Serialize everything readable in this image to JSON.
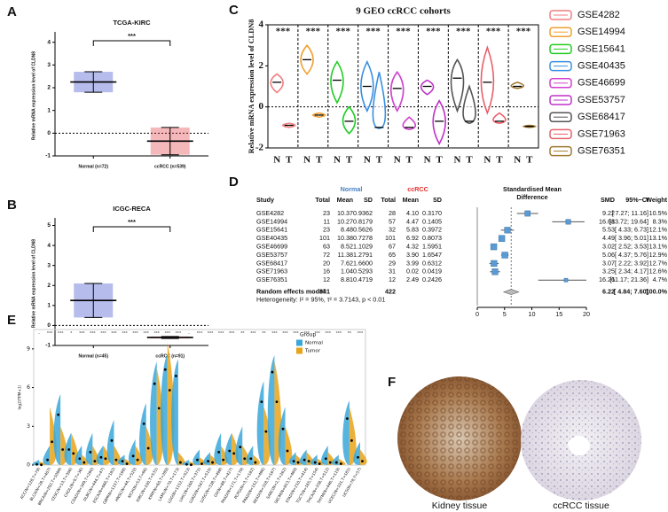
{
  "chart_data": [
    {
      "type": "dot",
      "panel": "A",
      "title": "TCGA-KIRC",
      "ylabel": "Relative mRNA expression level of CLDN8",
      "categories": [
        "Normal (n=72)",
        "ccRCC (n=539)"
      ],
      "colors": [
        "#2f3fc8",
        "#e0303a"
      ],
      "values": [
        2.25,
        -0.35
      ],
      "errors": [
        0.45,
        0.6
      ],
      "significance": "***",
      "ylim": [
        -1,
        4.3
      ],
      "yticks": [
        -1,
        0,
        1,
        2,
        3,
        4
      ]
    },
    {
      "type": "dot",
      "panel": "B",
      "title": "ICGC-RECA",
      "ylabel": "Relative mRNA expression level of CLDN8",
      "categories": [
        "Normal (n=45)",
        "ccRCC (n=91)"
      ],
      "colors": [
        "#2f3fc8",
        "#e0303a"
      ],
      "values": [
        1.25,
        -0.6
      ],
      "errors": [
        0.85,
        0.05
      ],
      "significance": "***",
      "ylim": [
        -1,
        5.2
      ],
      "yticks": [
        -1,
        0,
        1,
        2,
        3,
        4,
        5
      ]
    },
    {
      "type": "violin",
      "panel": "C",
      "title": "9 GEO ccRCC cohorts",
      "ylabel": "Relative mRNA expression level of CLDN8",
      "categories": [
        "N",
        "T"
      ],
      "significance": "***",
      "ylim": [
        -2,
        4
      ],
      "yticks": [
        -2,
        0,
        2,
        4
      ],
      "series": [
        {
          "name": "GSE4282",
          "color": "#f07f80",
          "values": [
            1.2,
            -0.9
          ],
          "low": [
            0.7,
            -1.0
          ],
          "high": [
            1.6,
            -0.8
          ]
        },
        {
          "name": "GSE14994",
          "color": "#f0a030",
          "values": [
            2.3,
            -0.4
          ],
          "low": [
            1.6,
            -0.5
          ],
          "high": [
            3.0,
            -0.3
          ]
        },
        {
          "name": "GSE15641",
          "color": "#22cc22",
          "values": [
            1.3,
            -0.7
          ],
          "low": [
            0.2,
            -1.3
          ],
          "high": [
            2.2,
            0.0
          ]
        },
        {
          "name": "GSE40435",
          "color": "#3a8fe0",
          "values": [
            1.0,
            -1.0
          ],
          "low": [
            -0.2,
            -1.05
          ],
          "high": [
            2.2,
            1.7
          ]
        },
        {
          "name": "GSE46699",
          "color": "#d040d0",
          "values": [
            0.9,
            -1.0
          ],
          "low": [
            -0.2,
            -1.1
          ],
          "high": [
            1.7,
            -0.5
          ]
        },
        {
          "name": "GSE53757",
          "color": "#c030c8",
          "values": [
            1.0,
            -0.7
          ],
          "low": [
            0.6,
            -1.8
          ],
          "high": [
            1.3,
            0.3
          ]
        },
        {
          "name": "GSE68417",
          "color": "#555555",
          "values": [
            1.4,
            -0.7
          ],
          "low": [
            -0.2,
            -0.8
          ],
          "high": [
            2.3,
            1.0
          ]
        },
        {
          "name": "GSE71963",
          "color": "#e8606a",
          "values": [
            1.2,
            -0.7
          ],
          "low": [
            -0.3,
            -0.8
          ],
          "high": [
            2.9,
            -0.3
          ]
        },
        {
          "name": "GSE76351",
          "color": "#a07830",
          "values": [
            1.0,
            -0.95
          ],
          "low": [
            0.9,
            -1.0
          ],
          "high": [
            1.2,
            -0.9
          ]
        }
      ]
    },
    {
      "type": "forest",
      "panel": "D",
      "group_labels": [
        "Normal",
        "ccRCC"
      ],
      "headers": [
        "Study",
        "Total",
        "Mean",
        "SD",
        "Total",
        "Mean",
        "SD"
      ],
      "effect_header": [
        "Standardised Mean",
        "Difference"
      ],
      "stat_headers": [
        "SMD",
        "95%−CI",
        "Weight"
      ],
      "rows": [
        {
          "study": "GSE4282",
          "cells": [
            "23",
            "10.37",
            "0.9362",
            "28",
            "4.10",
            "0.3170"
          ],
          "smd": 9.22,
          "ci": [
            7.27,
            11.16
          ],
          "ci_label": "[ 7.27; 11.16]",
          "weight": 10.5,
          "weight_label": "10.5%"
        },
        {
          "study": "GSE14994",
          "cells": [
            "11",
            "10.27",
            "0.8179",
            "57",
            "4.47",
            "0.1405"
          ],
          "smd": 16.68,
          "ci": [
            13.72,
            19.64
          ],
          "ci_label": "[13.72; 19.64]",
          "weight": 8.3,
          "weight_label": "8.3%"
        },
        {
          "study": "GSE15641",
          "cells": [
            "23",
            "8.48",
            "0.5626",
            "32",
            "5.83",
            "0.3972"
          ],
          "smd": 5.53,
          "ci": [
            4.33,
            6.73
          ],
          "ci_label": "[ 4.33; 6.73]",
          "weight": 12.1,
          "weight_label": "12.1%"
        },
        {
          "study": "GSE40435",
          "cells": [
            "101",
            "10.38",
            "0.7278",
            "101",
            "6.92",
            "0.8073"
          ],
          "smd": 4.49,
          "ci": [
            3.96,
            5.01
          ],
          "ci_label": "[ 3.96; 5.01]",
          "weight": 13.1,
          "weight_label": "13.1%"
        },
        {
          "study": "GSE46699",
          "cells": [
            "63",
            "8.52",
            "1.1029",
            "67",
            "4.32",
            "1.5951"
          ],
          "smd": 3.02,
          "ci": [
            2.52,
            3.53
          ],
          "ci_label": "[ 2.52; 3.53]",
          "weight": 13.1,
          "weight_label": "13.1%"
        },
        {
          "study": "GSE53757",
          "cells": [
            "72",
            "11.38",
            "1.2791",
            "65",
            "3.90",
            "1.6547"
          ],
          "smd": 5.06,
          "ci": [
            4.37,
            5.76
          ],
          "ci_label": "[ 4.37; 5.76]",
          "weight": 12.9,
          "weight_label": "12.9%"
        },
        {
          "study": "GSE68417",
          "cells": [
            "20",
            "7.62",
            "1.6600",
            "29",
            "3.99",
            "0.6312"
          ],
          "smd": 3.07,
          "ci": [
            2.22,
            3.92
          ],
          "ci_label": "[ 2.22; 3.92]",
          "weight": 12.7,
          "weight_label": "12.7%"
        },
        {
          "study": "GSE71963",
          "cells": [
            "16",
            "1.04",
            "0.5293",
            "31",
            "0.02",
            "0.0419"
          ],
          "smd": 3.25,
          "ci": [
            2.34,
            4.17
          ],
          "ci_label": "[ 2.34; 4.17]",
          "weight": 12.6,
          "weight_label": "12.6%"
        },
        {
          "study": "GSE76351",
          "cells": [
            "12",
            "8.81",
            "0.4719",
            "12",
            "2.49",
            "0.2426"
          ],
          "smd": 16.26,
          "ci": [
            11.17,
            21.36
          ],
          "ci_label": "[11.17; 21.36]",
          "weight": 4.7,
          "weight_label": "4.7%"
        }
      ],
      "pooled": {
        "study": "Random effects model",
        "normal_total": "341",
        "ccrcc_total": "422",
        "smd": 6.22,
        "ci": [
          4.84,
          7.6
        ],
        "ci_label": "[ 4.84; 7.60]",
        "weight_label": "100.0%"
      },
      "heterogeneity": "Heterogeneity: I² = 95%, τ² = 3.7143, p < 0.01",
      "xlim": [
        0,
        20
      ],
      "xticks": [
        0,
        5,
        10,
        15,
        20
      ]
    },
    {
      "type": "split-violin",
      "panel": "E",
      "ylabel": "log2(TPM+1)",
      "legend_title": "Group",
      "categories": [
        "ACC(N=128,T=79)",
        "BLCA(N=28,T=407)",
        "BRCA(N=292,T=1099)",
        "CESC(N=13,T=306)",
        "CHOL(N=9,T=36)",
        "COAD(N=349,T=290)",
        "DLBC(N=444,T=47)",
        "ESCA(N=666,T=182)",
        "GBM(N=1157,T=168)",
        "HNSC(N=44,T=520)",
        "KICH(N=53,T=66)",
        "KIRC(N=100,T=531)",
        "KIRP(N=60,T=289)",
        "LAML(N=70,T=173)",
        "LGG(N=1152,T=523)",
        "LIHC(N=160,T=371)",
        "LUAD(N=347,T=515)",
        "LUSC(N=338,T=498)",
        "OV(N=88,T=427)",
        "PAAD(N=171,T=179)",
        "PCPG(N=3,T=182)",
        "PRAD(N=152,T=496)",
        "READ(N=318,T=167)",
        "SARC(N=2,T=262)",
        "SKCM(N=813,T=469)",
        "STAD(N=210,T=414)",
        "TGCT(N=165,T=154)",
        "THCA(N=338,T=512)",
        "THYM(N=446,T=119)",
        "UCEC(N=101,T=181)",
        "UCS(N=78,T=57)"
      ],
      "significance": [
        "-",
        "***",
        "***",
        "*",
        "***",
        "***",
        "***",
        "***",
        "***",
        "***",
        "***",
        "***",
        "***",
        "***",
        "-",
        "***",
        "***",
        "***",
        "***",
        "**",
        "***",
        "**",
        "***",
        "***",
        "***",
        "***",
        "***",
        "***",
        "***",
        "**",
        "***"
      ],
      "series": [
        {
          "name": "Normal",
          "color": "#3aa7d8",
          "values": [
            0.05,
            0.4,
            3.9,
            1.2,
            0.5,
            1.0,
            0.6,
            1.9,
            0.3,
            0.7,
            3.2,
            6.3,
            7.4,
            6.9,
            0.05,
            0.4,
            0.3,
            1.0,
            1.1,
            1.4,
            0.5,
            4.9,
            7.2,
            2.8,
            0.3,
            0.4,
            0.2,
            0.5,
            0.2,
            3.6,
            0.6
          ],
          "max": [
            0.4,
            1.5,
            5.5,
            2.5,
            1.5,
            2.5,
            1.5,
            3.5,
            0.8,
            2,
            4.8,
            8,
            8.6,
            8.2,
            0.4,
            1.2,
            1,
            2.5,
            2.5,
            3,
            1.5,
            6.5,
            8.5,
            4.5,
            1,
            1.2,
            0.8,
            1.5,
            0.8,
            5,
            1.8
          ]
        },
        {
          "name": "Tumor",
          "color": "#e8a317",
          "values": [
            0.02,
            1.8,
            1.2,
            0.9,
            0.2,
            0.3,
            0.5,
            0.4,
            0.1,
            0.4,
            1.3,
            4.4,
            5.8,
            0.2,
            0.02,
            0.1,
            0.2,
            0.4,
            0.9,
            0.5,
            0.2,
            2.6,
            4.9,
            1.1,
            0.2,
            0.3,
            0.1,
            0.2,
            0.1,
            1.9,
            0.3
          ],
          "max": [
            0.3,
            4.5,
            3,
            2.5,
            0.8,
            1.5,
            1.5,
            1.5,
            0.5,
            1.5,
            3,
            7.5,
            9.5,
            1,
            0.3,
            0.6,
            0.8,
            1.5,
            2.5,
            1.5,
            0.8,
            4.5,
            8,
            3,
            0.8,
            1,
            0.5,
            1,
            0.5,
            4.5,
            1.2
          ]
        }
      ],
      "ylim": [
        0,
        10.5
      ],
      "yticks": [
        0,
        3,
        6,
        9
      ]
    }
  ],
  "panel_F": {
    "panel": "F",
    "images": [
      {
        "caption": "Kidney tissue"
      },
      {
        "caption": "ccRCC tissue"
      }
    ]
  }
}
